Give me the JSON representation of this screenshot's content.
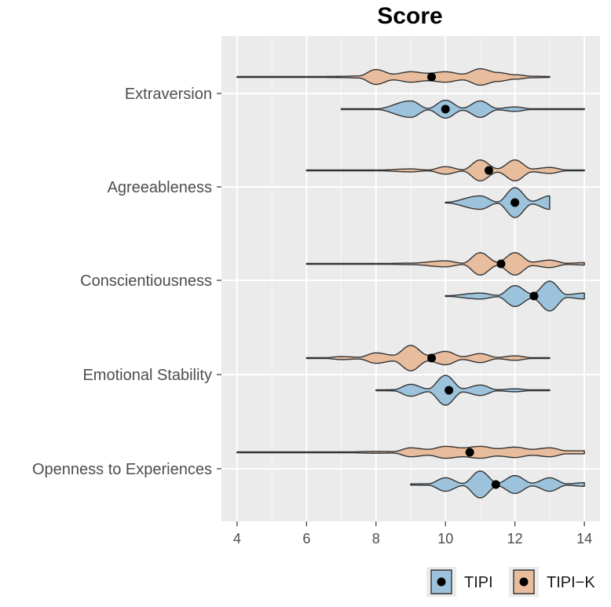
{
  "chart_data": {
    "type": "violin",
    "title": "Score",
    "xlabel": "",
    "ylabel": "",
    "xlim": [
      3.55,
      14.45
    ],
    "x_ticks": [
      4,
      6,
      8,
      10,
      12,
      14
    ],
    "x_tick_labels": [
      "4",
      "6",
      "8",
      "10",
      "12",
      "14"
    ],
    "grid": true,
    "legend_position": "bottom-right",
    "categories": [
      "Extraversion",
      "Agreeableness",
      "Conscientiousness",
      "Emotional Stability",
      "Openness to Experiences"
    ],
    "series": [
      {
        "name": "TIPI",
        "color": "#9dc3dc",
        "means": [
          10.0,
          12.0,
          12.55,
          10.1,
          11.45
        ],
        "distributions": [
          {
            "min": 7,
            "max": 14,
            "density": [
              [
                7,
                0.01
              ],
              [
                8,
                0.02
              ],
              [
                9,
                0.55
              ],
              [
                9.5,
                0.05
              ],
              [
                10,
                0.6
              ],
              [
                10.5,
                0.08
              ],
              [
                11,
                0.55
              ],
              [
                11.5,
                0.05
              ],
              [
                12,
                0.15
              ],
              [
                12.5,
                0.02
              ],
              [
                13,
                0.01
              ],
              [
                14,
                0.01
              ]
            ]
          },
          {
            "min": 10,
            "max": 13,
            "density": [
              [
                10,
                0.02
              ],
              [
                11,
                0.45
              ],
              [
                11.5,
                0.05
              ],
              [
                12,
                1.0
              ],
              [
                12.5,
                0.1
              ],
              [
                13,
                0.45
              ]
            ]
          },
          {
            "min": 10,
            "max": 14,
            "density": [
              [
                10,
                0.02
              ],
              [
                11,
                0.2
              ],
              [
                11.5,
                0.05
              ],
              [
                12,
                0.7
              ],
              [
                12.5,
                0.15
              ],
              [
                13,
                1.0
              ],
              [
                13.5,
                0.1
              ],
              [
                14,
                0.2
              ]
            ]
          },
          {
            "min": 8,
            "max": 13,
            "density": [
              [
                8,
                0.02
              ],
              [
                8.5,
                0.04
              ],
              [
                9,
                0.4
              ],
              [
                9.5,
                0.1
              ],
              [
                10,
                1.0
              ],
              [
                10.5,
                0.12
              ],
              [
                11,
                0.35
              ],
              [
                11.5,
                0.04
              ],
              [
                12,
                0.1
              ],
              [
                12.5,
                0.02
              ],
              [
                13,
                0.01
              ]
            ]
          },
          {
            "min": 9,
            "max": 14,
            "density": [
              [
                9,
                0.04
              ],
              [
                9.5,
                0.05
              ],
              [
                10,
                0.45
              ],
              [
                10.5,
                0.08
              ],
              [
                11,
                0.9
              ],
              [
                11.5,
                0.1
              ],
              [
                12,
                0.6
              ],
              [
                12.5,
                0.1
              ],
              [
                13,
                0.45
              ],
              [
                13.5,
                0.05
              ],
              [
                14,
                0.12
              ]
            ]
          }
        ]
      },
      {
        "name": "TIPI−K",
        "color": "#e8bd9e",
        "means": [
          9.6,
          11.25,
          11.6,
          9.6,
          10.7
        ],
        "distributions": [
          {
            "min": 4,
            "max": 13,
            "density": [
              [
                4,
                0.005
              ],
              [
                5,
                0.01
              ],
              [
                6,
                0.02
              ],
              [
                7,
                0.04
              ],
              [
                7.5,
                0.07
              ],
              [
                8,
                0.5
              ],
              [
                8.5,
                0.2
              ],
              [
                9,
                0.35
              ],
              [
                9.5,
                0.25
              ],
              [
                10,
                0.35
              ],
              [
                10.5,
                0.2
              ],
              [
                11,
                0.55
              ],
              [
                11.5,
                0.3
              ],
              [
                12,
                0.15
              ],
              [
                12.5,
                0.05
              ],
              [
                13,
                0.03
              ]
            ]
          },
          {
            "min": 6,
            "max": 14,
            "density": [
              [
                6,
                0.01
              ],
              [
                7,
                0.01
              ],
              [
                8,
                0.02
              ],
              [
                9,
                0.1
              ],
              [
                9.5,
                0.03
              ],
              [
                10,
                0.25
              ],
              [
                10.5,
                0.05
              ],
              [
                11,
                0.7
              ],
              [
                11.5,
                0.12
              ],
              [
                12,
                0.7
              ],
              [
                12.5,
                0.1
              ],
              [
                13,
                0.2
              ],
              [
                13.5,
                0.03
              ],
              [
                14,
                0.02
              ]
            ]
          },
          {
            "min": 6,
            "max": 14,
            "density": [
              [
                6,
                0.01
              ],
              [
                7,
                0.01
              ],
              [
                8,
                0.02
              ],
              [
                9,
                0.05
              ],
              [
                10,
                0.2
              ],
              [
                10.5,
                0.05
              ],
              [
                11,
                0.75
              ],
              [
                11.5,
                0.12
              ],
              [
                12,
                0.75
              ],
              [
                12.5,
                0.12
              ],
              [
                13,
                0.25
              ],
              [
                13.5,
                0.04
              ],
              [
                14,
                0.08
              ]
            ]
          },
          {
            "min": 6,
            "max": 13,
            "density": [
              [
                6,
                0.01
              ],
              [
                6.5,
                0.02
              ],
              [
                7,
                0.1
              ],
              [
                7.5,
                0.06
              ],
              [
                8,
                0.35
              ],
              [
                8.5,
                0.2
              ],
              [
                9,
                0.85
              ],
              [
                9.5,
                0.2
              ],
              [
                10,
                0.45
              ],
              [
                10.5,
                0.1
              ],
              [
                11,
                0.3
              ],
              [
                11.5,
                0.05
              ],
              [
                12,
                0.15
              ],
              [
                12.5,
                0.03
              ],
              [
                13,
                0.02
              ]
            ]
          },
          {
            "min": 4,
            "max": 14,
            "density": [
              [
                4,
                0.005
              ],
              [
                5,
                0.01
              ],
              [
                6,
                0.01
              ],
              [
                7,
                0.02
              ],
              [
                8,
                0.06
              ],
              [
                8.5,
                0.05
              ],
              [
                9,
                0.3
              ],
              [
                9.5,
                0.2
              ],
              [
                10,
                0.4
              ],
              [
                10.5,
                0.3
              ],
              [
                11,
                0.4
              ],
              [
                11.5,
                0.25
              ],
              [
                12,
                0.35
              ],
              [
                12.5,
                0.2
              ],
              [
                13,
                0.3
              ],
              [
                13.5,
                0.1
              ],
              [
                14,
                0.1
              ]
            ]
          }
        ]
      }
    ]
  }
}
